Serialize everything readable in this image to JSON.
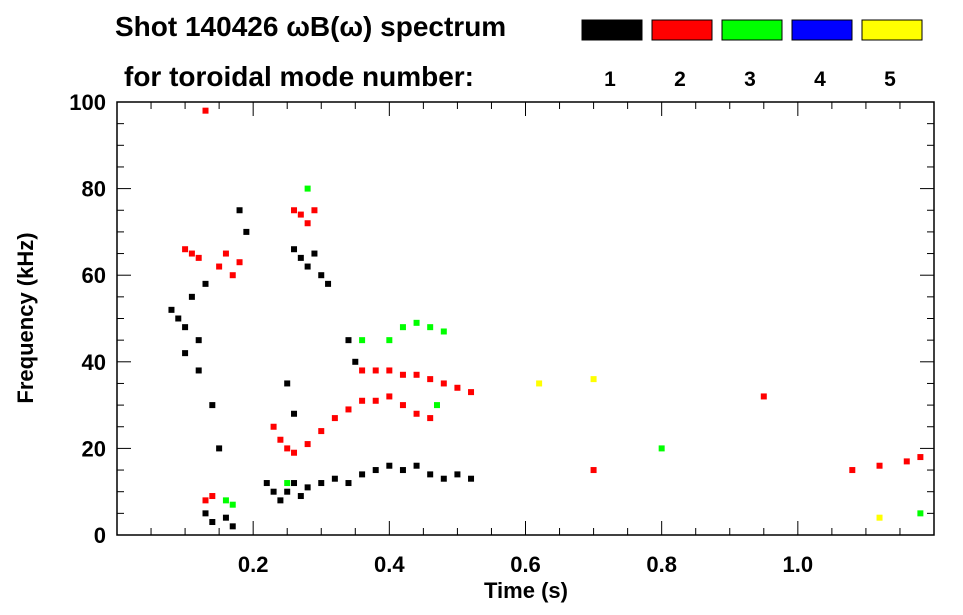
{
  "title_line1": "Shot 140426 ωB(ω) spectrum",
  "title_line2": "for toroidal mode number:",
  "legend": [
    {
      "label": "1",
      "color": "#000000"
    },
    {
      "label": "2",
      "color": "#ff0000"
    },
    {
      "label": "3",
      "color": "#00ff00"
    },
    {
      "label": "4",
      "color": "#0000ff"
    },
    {
      "label": "5",
      "color": "#ffff00"
    }
  ],
  "chart_data": {
    "type": "heatmap",
    "title": "Shot 140426 ωB(ω) spectrum",
    "xlabel": "Time (s)",
    "ylabel": "Frequency (kHz)",
    "xlim": [
      0.0,
      1.2
    ],
    "ylim": [
      0,
      100
    ],
    "xticks": [
      0.2,
      0.4,
      0.6,
      0.8,
      1.0
    ],
    "xtick_labels": [
      "0.2",
      "0.4",
      "0.6",
      "0.8",
      "1.0"
    ],
    "yticks": [
      0,
      20,
      40,
      60,
      80,
      100
    ],
    "ytick_labels": [
      "0",
      "20",
      "40",
      "60",
      "80",
      "100"
    ],
    "series": [
      {
        "name": "1",
        "color": "#000000",
        "points": [
          [
            0.08,
            52
          ],
          [
            0.09,
            50
          ],
          [
            0.1,
            48
          ],
          [
            0.11,
            55
          ],
          [
            0.12,
            45
          ],
          [
            0.13,
            58
          ],
          [
            0.1,
            42
          ],
          [
            0.12,
            38
          ],
          [
            0.14,
            30
          ],
          [
            0.15,
            20
          ],
          [
            0.13,
            5
          ],
          [
            0.14,
            3
          ],
          [
            0.16,
            4
          ],
          [
            0.17,
            2
          ],
          [
            0.18,
            75
          ],
          [
            0.19,
            70
          ],
          [
            0.22,
            12
          ],
          [
            0.23,
            10
          ],
          [
            0.24,
            8
          ],
          [
            0.25,
            10
          ],
          [
            0.26,
            12
          ],
          [
            0.27,
            9
          ],
          [
            0.28,
            11
          ],
          [
            0.3,
            12
          ],
          [
            0.32,
            13
          ],
          [
            0.34,
            12
          ],
          [
            0.36,
            14
          ],
          [
            0.38,
            15
          ],
          [
            0.4,
            16
          ],
          [
            0.42,
            15
          ],
          [
            0.44,
            16
          ],
          [
            0.46,
            14
          ],
          [
            0.48,
            13
          ],
          [
            0.5,
            14
          ],
          [
            0.52,
            13
          ],
          [
            0.26,
            66
          ],
          [
            0.27,
            64
          ],
          [
            0.28,
            62
          ],
          [
            0.29,
            65
          ],
          [
            0.3,
            60
          ],
          [
            0.31,
            58
          ],
          [
            0.34,
            45
          ],
          [
            0.35,
            40
          ],
          [
            0.25,
            35
          ],
          [
            0.26,
            28
          ]
        ]
      },
      {
        "name": "2",
        "color": "#ff0000",
        "points": [
          [
            0.1,
            66
          ],
          [
            0.11,
            65
          ],
          [
            0.12,
            64
          ],
          [
            0.13,
            98
          ],
          [
            0.15,
            62
          ],
          [
            0.16,
            65
          ],
          [
            0.17,
            60
          ],
          [
            0.18,
            63
          ],
          [
            0.26,
            75
          ],
          [
            0.27,
            74
          ],
          [
            0.28,
            72
          ],
          [
            0.29,
            75
          ],
          [
            0.23,
            25
          ],
          [
            0.24,
            22
          ],
          [
            0.25,
            20
          ],
          [
            0.26,
            19
          ],
          [
            0.28,
            21
          ],
          [
            0.3,
            24
          ],
          [
            0.32,
            27
          ],
          [
            0.34,
            29
          ],
          [
            0.36,
            31
          ],
          [
            0.38,
            31
          ],
          [
            0.4,
            32
          ],
          [
            0.42,
            30
          ],
          [
            0.44,
            28
          ],
          [
            0.46,
            27
          ],
          [
            0.36,
            38
          ],
          [
            0.38,
            38
          ],
          [
            0.4,
            38
          ],
          [
            0.42,
            37
          ],
          [
            0.44,
            37
          ],
          [
            0.46,
            36
          ],
          [
            0.48,
            35
          ],
          [
            0.5,
            34
          ],
          [
            0.52,
            33
          ],
          [
            0.13,
            8
          ],
          [
            0.14,
            9
          ],
          [
            0.7,
            15
          ],
          [
            0.95,
            32
          ],
          [
            1.08,
            15
          ],
          [
            1.12,
            16
          ],
          [
            1.16,
            17
          ],
          [
            1.18,
            18
          ]
        ]
      },
      {
        "name": "3",
        "color": "#00ff00",
        "points": [
          [
            0.25,
            12
          ],
          [
            0.28,
            80
          ],
          [
            0.36,
            45
          ],
          [
            0.4,
            45
          ],
          [
            0.42,
            48
          ],
          [
            0.44,
            49
          ],
          [
            0.46,
            48
          ],
          [
            0.48,
            47
          ],
          [
            0.47,
            30
          ],
          [
            0.16,
            8
          ],
          [
            0.17,
            7
          ],
          [
            0.8,
            20
          ],
          [
            1.18,
            5
          ]
        ]
      },
      {
        "name": "4",
        "color": "#0000ff",
        "points": []
      },
      {
        "name": "5",
        "color": "#ffff00",
        "points": [
          [
            0.62,
            35
          ],
          [
            0.7,
            36
          ],
          [
            1.12,
            4
          ]
        ]
      }
    ]
  }
}
